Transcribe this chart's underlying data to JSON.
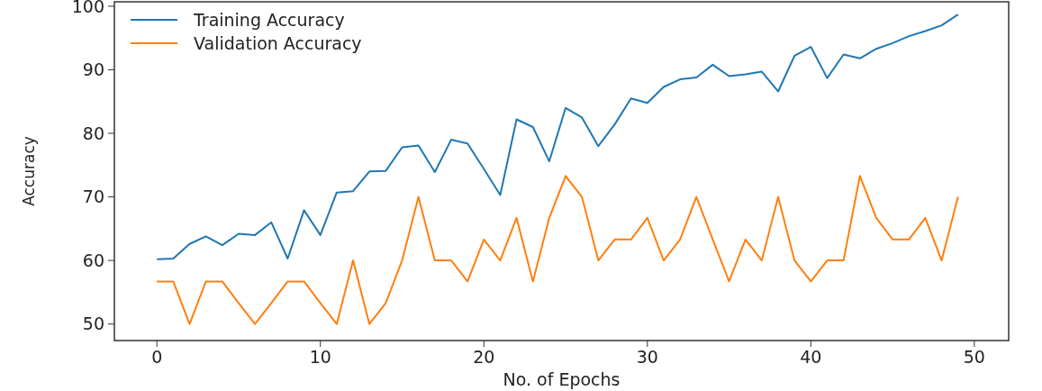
{
  "chart_data": {
    "type": "line",
    "xlabel": "No. of Epochs",
    "ylabel": "Accuracy",
    "x": [
      0,
      1,
      2,
      3,
      4,
      5,
      6,
      7,
      8,
      9,
      10,
      11,
      12,
      13,
      14,
      15,
      16,
      17,
      18,
      19,
      20,
      21,
      22,
      23,
      24,
      25,
      26,
      27,
      28,
      29,
      30,
      31,
      32,
      33,
      34,
      35,
      36,
      37,
      38,
      39,
      40,
      41,
      42,
      43,
      44,
      45,
      46,
      47,
      48,
      49
    ],
    "xlim": [
      -2.6,
      52.1
    ],
    "xticks": [
      0,
      10,
      20,
      30,
      40,
      50
    ],
    "ylim": [
      47.4,
      100.7
    ],
    "yticks": [
      50,
      60,
      70,
      80,
      90,
      100
    ],
    "legend": "top left",
    "grid": false,
    "series": [
      {
        "name": "Training Accuracy",
        "color": "#1f77b4",
        "values": [
          60.2,
          60.3,
          62.6,
          63.8,
          62.4,
          64.2,
          64,
          66,
          60.3,
          67.9,
          64,
          70.7,
          70.9,
          74,
          74.1,
          77.8,
          78.1,
          73.9,
          79,
          78.4,
          74.4,
          70.3,
          82.2,
          81,
          75.6,
          84,
          82.5,
          78,
          81.4,
          85.5,
          84.8,
          87.3,
          88.5,
          88.8,
          90.8,
          89,
          89.3,
          89.7,
          86.6,
          92.2,
          93.6,
          88.7,
          92.4,
          91.8,
          93.3,
          94.2,
          95.3,
          96.1,
          97,
          98.7
        ]
      },
      {
        "name": "Validation Accuracy",
        "color": "#ff7f0e",
        "values": [
          56.7,
          56.7,
          50,
          56.7,
          56.7,
          53.3,
          50,
          53.3,
          56.7,
          56.7,
          53.3,
          50,
          60,
          50,
          53.3,
          60,
          70,
          60,
          60,
          56.7,
          63.3,
          60,
          66.7,
          56.7,
          66.7,
          73.3,
          70,
          60,
          63.3,
          63.3,
          66.7,
          60,
          63.3,
          70,
          63.3,
          56.7,
          63.3,
          60,
          70,
          60,
          56.7,
          60,
          60,
          73.3,
          66.7,
          63.3,
          63.3,
          66.7,
          60,
          70
        ]
      }
    ]
  }
}
